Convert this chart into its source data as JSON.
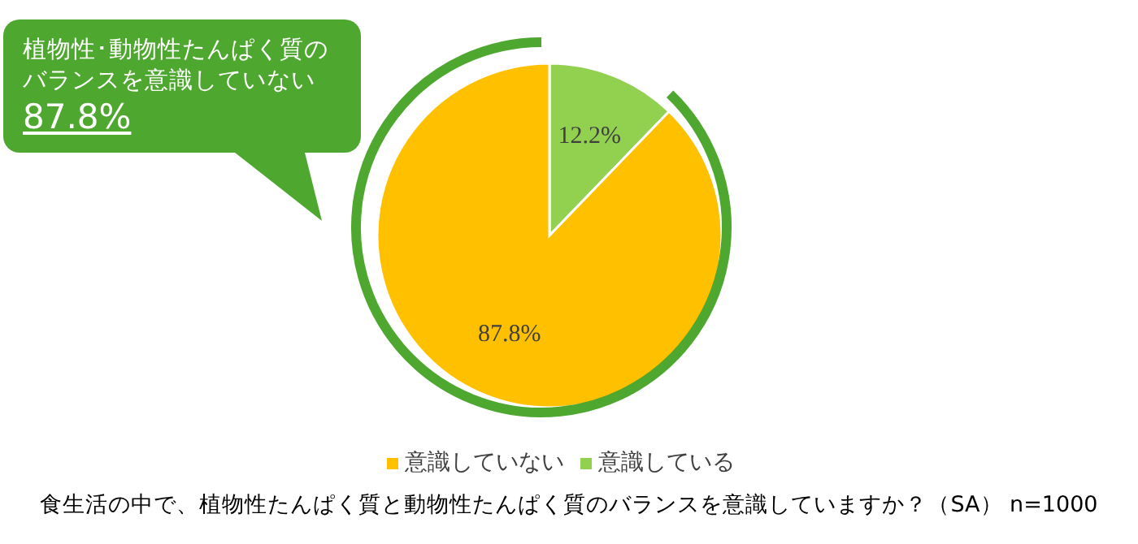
{
  "chart_data": {
    "type": "pie",
    "title": "食生活の中で、植物性たんぱく質と動物性たんぱく質のバランスを意識していますか？（SA） n=1000",
    "categories": [
      "意識している",
      "意識していない"
    ],
    "values": [
      12.2,
      87.8
    ],
    "colors": [
      "#92d050",
      "#ffc000"
    ],
    "value_labels": [
      "12.2%",
      "87.8%"
    ],
    "legend": "bottom",
    "annotations": [
      "植物性･動物性たんぱく質のバランスを意識していない",
      "87.8%"
    ]
  }
}
